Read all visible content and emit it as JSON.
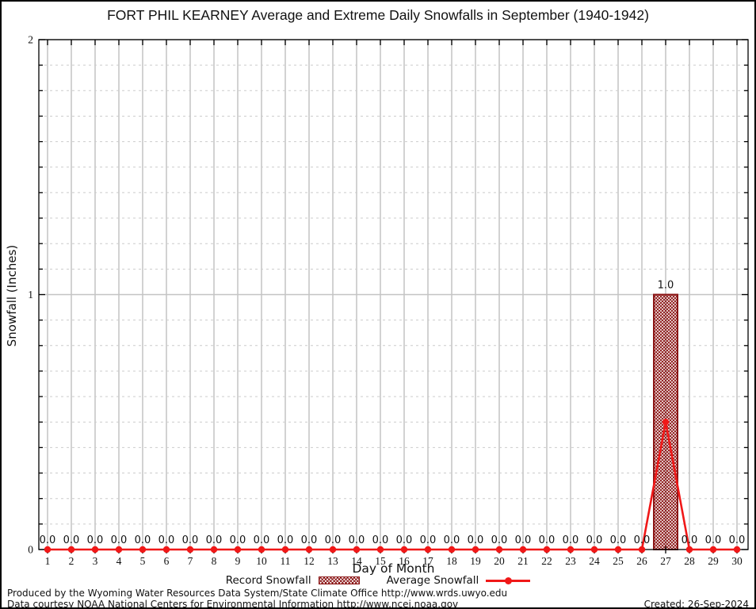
{
  "title": "FORT PHIL KEARNEY Average and Extreme Daily Snowfalls in September (1940-1942)",
  "chart_data": {
    "type": "bar",
    "categories": [
      1,
      2,
      3,
      4,
      5,
      6,
      7,
      8,
      9,
      10,
      11,
      12,
      13,
      14,
      15,
      16,
      17,
      18,
      19,
      20,
      21,
      22,
      23,
      24,
      25,
      26,
      27,
      28,
      29,
      30
    ],
    "series": [
      {
        "name": "Record Snowfall",
        "type": "bar",
        "color": "#8b1515",
        "fill": "crosshatch",
        "values": [
          0,
          0,
          0,
          0,
          0,
          0,
          0,
          0,
          0,
          0,
          0,
          0,
          0,
          0,
          0,
          0,
          0,
          0,
          0,
          0,
          0,
          0,
          0,
          0,
          0,
          0,
          1.0,
          0,
          0,
          0
        ]
      },
      {
        "name": "Average Snowfall",
        "type": "line",
        "color": "#f01818",
        "marker": "filled-circle",
        "values": [
          0,
          0,
          0,
          0,
          0,
          0,
          0,
          0,
          0,
          0,
          0,
          0,
          0,
          0,
          0,
          0,
          0,
          0,
          0,
          0,
          0,
          0,
          0,
          0,
          0,
          0,
          0.5,
          0,
          0,
          0
        ]
      }
    ],
    "point_labels": [
      "0.0",
      "0.0",
      "0.0",
      "0.0",
      "0.0",
      "0.0",
      "0.0",
      "0.0",
      "0.0",
      "0.0",
      "0.0",
      "0.0",
      "0.0",
      "0.0",
      "0.0",
      "0.0",
      "0.0",
      "0.0",
      "0.0",
      "0.0",
      "0.0",
      "0.0",
      "0.0",
      "0.0",
      "0.0",
      "0.0",
      "1.0",
      "0.0",
      "0.0",
      "0.0"
    ],
    "title": "FORT PHIL KEARNEY Average and Extreme Daily Snowfalls in September (1940-1942)",
    "xlabel": "Day of Month",
    "ylabel": "Snowfall (Inches)",
    "ylim": [
      0,
      2
    ],
    "yticks": [
      0,
      1,
      2
    ],
    "y_minor_step": 0.1,
    "grid": "major solid gray, minor dashed gray",
    "legend_position": "bottom-center"
  },
  "legend": {
    "record_label": "Record Snowfall",
    "average_label": "Average Snowfall"
  },
  "footer": {
    "line1": "Produced by the Wyoming Water Resources Data System/State Climate Office http://www.wrds.uwyo.edu",
    "line2": "Data courtesy NOAA National Centers for Environmental Information http://www.ncei.noaa.gov",
    "created": "Created: 26-Sep-2024"
  },
  "colors": {
    "record_bar": "#8b1515",
    "average_line": "#f01818",
    "grid_major": "#c4c4c4",
    "grid_minor": "#cccccc",
    "axis": "#000000"
  }
}
